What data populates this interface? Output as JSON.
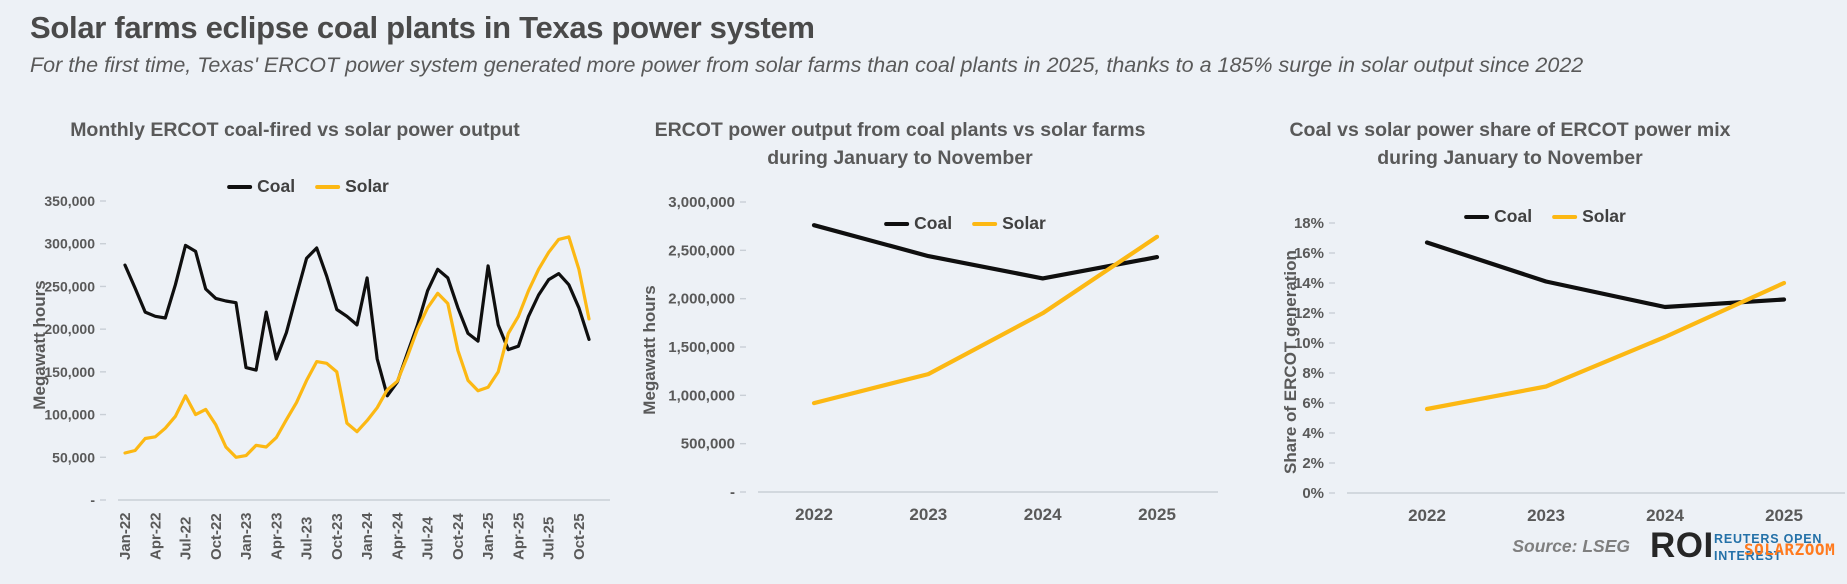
{
  "header": {
    "title": "Solar farms eclipse coal plants in Texas power system",
    "subtitle": "For the first time, Texas' ERCOT power system generated more power from solar farms than coal plants in 2025, thanks to a 185% surge in solar output since 2022"
  },
  "colors": {
    "coal": "#0F0F0F",
    "solar": "#FCB813",
    "axis": "#C9CFD6",
    "text": "#595959",
    "background": "#EDF1F6",
    "logo_dark": "#262626",
    "logo_blue": "#2471A8",
    "watermark_orange": "#FF7A1E"
  },
  "source": {
    "label": "Source: LSEG",
    "logo_text": "ROI",
    "logo_sub_line1": "REUTERS OPEN",
    "logo_sub_line2": "INTEREST",
    "watermark": "SOLARZOOM"
  },
  "charts": [
    {
      "title": "Monthly ERCOT coal-fired vs solar power output",
      "y_axis_label": "Megawatt hours",
      "y_ticks": [
        {
          "label": "350,000",
          "value": 350000
        },
        {
          "label": "300,000",
          "value": 300000
        },
        {
          "label": "250,000",
          "value": 250000
        },
        {
          "label": "200,000",
          "value": 200000
        },
        {
          "label": "150,000",
          "value": 150000
        },
        {
          "label": "100,000",
          "value": 100000
        },
        {
          "label": "50,000",
          "value": 50000
        },
        {
          "label": "-",
          "value": 0
        }
      ]
    },
    {
      "title": "ERCOT power output from coal plants vs solar farms during January to November",
      "y_axis_label": "Megawatt hours",
      "y_ticks": [
        {
          "label": "3,000,000",
          "value": 3000000
        },
        {
          "label": "2,500,000",
          "value": 2500000
        },
        {
          "label": "2,000,000",
          "value": 2000000
        },
        {
          "label": "1,500,000",
          "value": 1500000
        },
        {
          "label": "1,000,000",
          "value": 1000000
        },
        {
          "label": "500,000",
          "value": 500000
        },
        {
          "label": "-",
          "value": 0
        }
      ]
    },
    {
      "title": "Coal vs solar power share of ERCOT power mix during January to November",
      "y_axis_label": "Share of ERCOT generation",
      "y_ticks": [
        {
          "label": "18%",
          "value": 18
        },
        {
          "label": "16%",
          "value": 16
        },
        {
          "label": "14%",
          "value": 14
        },
        {
          "label": "12%",
          "value": 12
        },
        {
          "label": "10%",
          "value": 10
        },
        {
          "label": "8%",
          "value": 8
        },
        {
          "label": "6%",
          "value": 6
        },
        {
          "label": "4%",
          "value": 4
        },
        {
          "label": "2%",
          "value": 2
        },
        {
          "label": "0%",
          "value": 0
        }
      ]
    }
  ],
  "chart_data": [
    {
      "type": "line",
      "title": "Monthly ERCOT coal-fired vs solar power output",
      "xlabel": "",
      "ylabel": "Megawatt hours",
      "ylim": [
        0,
        350000
      ],
      "grid": false,
      "legend_position": "top-center",
      "categories": [
        "Jan-22",
        "Feb-22",
        "Mar-22",
        "Apr-22",
        "May-22",
        "Jun-22",
        "Jul-22",
        "Aug-22",
        "Sep-22",
        "Oct-22",
        "Nov-22",
        "Dec-22",
        "Jan-23",
        "Feb-23",
        "Mar-23",
        "Apr-23",
        "May-23",
        "Jun-23",
        "Jul-23",
        "Aug-23",
        "Sep-23",
        "Oct-23",
        "Nov-23",
        "Dec-23",
        "Jan-24",
        "Feb-24",
        "Mar-24",
        "Apr-24",
        "May-24",
        "Jun-24",
        "Jul-24",
        "Aug-24",
        "Sep-24",
        "Oct-24",
        "Nov-24",
        "Dec-24",
        "Jan-25",
        "Feb-25",
        "Mar-25",
        "Apr-25",
        "May-25",
        "Jun-25",
        "Jul-25",
        "Aug-25",
        "Sep-25",
        "Oct-25",
        "Nov-25"
      ],
      "series": [
        {
          "name": "Coal",
          "color": "#0F0F0F",
          "values": [
            275000,
            248000,
            220000,
            215000,
            213000,
            252000,
            298000,
            291000,
            247000,
            236000,
            233000,
            231000,
            155000,
            152000,
            220000,
            165000,
            196000,
            240000,
            283000,
            295000,
            262000,
            223000,
            215000,
            205000,
            260000,
            165000,
            122000,
            138000,
            172000,
            205000,
            245000,
            270000,
            260000,
            225000,
            195000,
            186000,
            274000,
            205000,
            176000,
            180000,
            215000,
            240000,
            258000,
            265000,
            252000,
            225000,
            188000
          ]
        },
        {
          "name": "Solar",
          "color": "#FCB813",
          "values": [
            55000,
            58000,
            72000,
            74000,
            84000,
            98000,
            122000,
            100000,
            106000,
            88000,
            62000,
            50000,
            52000,
            64000,
            62000,
            73000,
            94000,
            114000,
            140000,
            162000,
            160000,
            150000,
            90000,
            80000,
            93000,
            108000,
            129000,
            139000,
            168000,
            200000,
            225000,
            242000,
            230000,
            175000,
            140000,
            128000,
            132000,
            150000,
            195000,
            215000,
            245000,
            270000,
            290000,
            305000,
            308000,
            270000,
            212000
          ]
        }
      ]
    },
    {
      "type": "line",
      "title": "ERCOT power output from coal plants vs solar farms during January to November",
      "xlabel": "",
      "ylabel": "Megawatt hours",
      "ylim": [
        0,
        3000000
      ],
      "grid": false,
      "legend_position": "top-center",
      "categories": [
        "2022",
        "2023",
        "2024",
        "2025"
      ],
      "series": [
        {
          "name": "Coal",
          "color": "#0F0F0F",
          "values": [
            2760000,
            2440000,
            2210000,
            2430000
          ]
        },
        {
          "name": "Solar",
          "color": "#FCB813",
          "values": [
            920000,
            1220000,
            1850000,
            2640000
          ]
        }
      ]
    },
    {
      "type": "line",
      "title": "Coal vs solar power share of ERCOT power mix during January to November",
      "xlabel": "",
      "ylabel": "Share of ERCOT generation",
      "ylim": [
        0,
        18
      ],
      "unit": "%",
      "grid": false,
      "legend_position": "top-center",
      "categories": [
        "2022",
        "2023",
        "2024",
        "2025"
      ],
      "series": [
        {
          "name": "Coal",
          "color": "#0F0F0F",
          "values": [
            16.7,
            14.1,
            12.4,
            12.9
          ]
        },
        {
          "name": "Solar",
          "color": "#FCB813",
          "values": [
            5.6,
            7.1,
            10.4,
            14.0
          ]
        }
      ]
    }
  ]
}
